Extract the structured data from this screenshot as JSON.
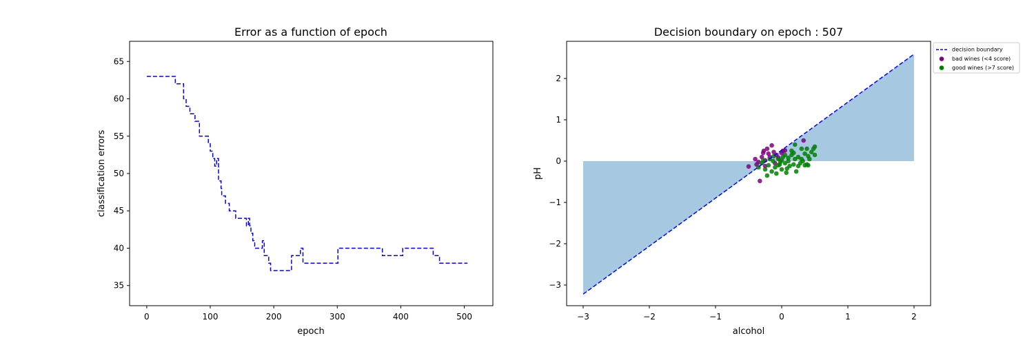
{
  "chart_data": [
    {
      "type": "line",
      "title": "Error as a function of epoch",
      "xlabel": "epoch",
      "ylabel": "classification errors",
      "xlim": [
        -27,
        545
      ],
      "ylim": [
        32.3,
        67.7
      ],
      "xticks": [
        0,
        100,
        200,
        300,
        400,
        500
      ],
      "yticks": [
        35,
        40,
        45,
        50,
        55,
        60,
        65
      ],
      "step": true,
      "series": [
        {
          "color": "#0000ff",
          "linestyle": "dashed",
          "x": [
            0,
            45,
            45,
            58,
            58,
            62,
            62,
            68,
            68,
            76,
            76,
            83,
            83,
            97,
            97,
            100,
            100,
            104,
            104,
            107,
            107,
            110,
            110,
            113,
            113,
            114,
            114,
            117,
            117,
            118,
            118,
            124,
            124,
            130,
            130,
            134,
            134,
            140,
            140,
            157,
            157,
            160,
            160,
            162,
            162,
            164,
            164,
            167,
            167,
            170,
            170,
            174,
            174,
            182,
            182,
            185,
            185,
            192,
            192,
            195,
            195,
            200,
            200,
            205,
            205,
            228,
            228,
            242,
            242,
            246,
            246,
            250,
            250,
            288,
            288,
            301,
            301,
            310,
            310,
            351,
            351,
            371,
            371,
            403,
            403,
            451,
            451,
            461,
            461,
            468,
            468,
            505
          ],
          "y": [
            63,
            63,
            62,
            62,
            60,
            60,
            59,
            59,
            58,
            58,
            57,
            57,
            55,
            55,
            54,
            54,
            53,
            53,
            52,
            52,
            51,
            51,
            52,
            52,
            49,
            49,
            49,
            49,
            48,
            48,
            47,
            47,
            46,
            46,
            45,
            45,
            45,
            45,
            44,
            44,
            43,
            43,
            44,
            44,
            43,
            43,
            42,
            42,
            41,
            41,
            40,
            40,
            40,
            40,
            41,
            41,
            39,
            39,
            38,
            38,
            37,
            37,
            37,
            37,
            37,
            37,
            39,
            39,
            40,
            40,
            38,
            38,
            38,
            38,
            38,
            38,
            40,
            40,
            40,
            40,
            40,
            40,
            39,
            39,
            40,
            40,
            39,
            39,
            38,
            38,
            38,
            38
          ]
        }
      ]
    },
    {
      "type": "scatter",
      "title": "Decision boundary on epoch : 507",
      "xlabel": "alcohol",
      "ylabel": "pH",
      "xlim": [
        -3.25,
        2.25
      ],
      "ylim": [
        -3.5,
        2.9
      ],
      "xticks": [
        -3,
        -2,
        -1,
        0,
        1,
        2
      ],
      "yticks": [
        -3,
        -2,
        -1,
        0,
        1,
        2
      ],
      "xtick_labels": [
        "−3",
        "−2",
        "−1",
        "0",
        "1",
        "2"
      ],
      "ytick_labels": [
        "−3",
        "−2",
        "−1",
        "0",
        "1",
        "2"
      ],
      "legend_position": "outside-top-right",
      "boundary": {
        "label": "decision boundary",
        "color": "#0000ff",
        "linestyle": "dashed",
        "x": [
          -3,
          2
        ],
        "y": [
          -3.22,
          2.59
        ]
      },
      "fill": {
        "color": "#a6c8e1",
        "regions": [
          {
            "x": [
              -3,
              -0.22
            ],
            "y_from": [
              -3.22,
              0
            ],
            "y_to": [
              0,
              0
            ]
          },
          {
            "x": [
              -0.22,
              2
            ],
            "y_from": [
              0,
              2.59
            ],
            "y_to": [
              0,
              0
            ]
          }
        ]
      },
      "series": [
        {
          "name": "bad wines (<4 score)",
          "color": "#800080",
          "points": [
            [
              -0.5,
              -0.13
            ],
            [
              -0.4,
              0.05
            ],
            [
              -0.38,
              -0.08
            ],
            [
              -0.33,
              -0.48
            ],
            [
              -0.3,
              0.1
            ],
            [
              -0.28,
              0.2
            ],
            [
              -0.27,
              0.25
            ],
            [
              -0.25,
              0.02
            ],
            [
              -0.22,
              0.3
            ],
            [
              -0.2,
              0.18
            ],
            [
              -0.18,
              0.1
            ],
            [
              -0.15,
              0.38
            ],
            [
              -0.12,
              0.22
            ],
            [
              -0.1,
              -0.05
            ],
            [
              -0.08,
              0.15
            ],
            [
              -0.05,
              0.08
            ],
            [
              0.0,
              0.2
            ],
            [
              0.02,
              0.25
            ],
            [
              0.05,
              0.26
            ],
            [
              0.33,
              0.5
            ],
            [
              -0.35,
              -0.02
            ],
            [
              -0.25,
              -0.12
            ]
          ]
        },
        {
          "name": "good wines (>7 score)",
          "color": "#008000",
          "points": [
            [
              -0.35,
              -0.15
            ],
            [
              -0.3,
              -0.05
            ],
            [
              -0.28,
              0.02
            ],
            [
              -0.25,
              -0.2
            ],
            [
              -0.22,
              -0.35
            ],
            [
              -0.2,
              -0.1
            ],
            [
              -0.18,
              0.05
            ],
            [
              -0.15,
              -0.25
            ],
            [
              -0.13,
              0.0
            ],
            [
              -0.1,
              -0.15
            ],
            [
              -0.08,
              -0.3
            ],
            [
              -0.05,
              0.05
            ],
            [
              -0.03,
              -0.08
            ],
            [
              0.0,
              -0.2
            ],
            [
              0.02,
              0.1
            ],
            [
              0.05,
              -0.05
            ],
            [
              0.07,
              -0.28
            ],
            [
              0.1,
              0.0
            ],
            [
              0.12,
              -0.12
            ],
            [
              0.15,
              0.15
            ],
            [
              0.18,
              -0.08
            ],
            [
              0.2,
              0.05
            ],
            [
              0.22,
              -0.25
            ],
            [
              0.25,
              0.1
            ],
            [
              0.28,
              -0.05
            ],
            [
              0.3,
              0.3
            ],
            [
              0.32,
              0.0
            ],
            [
              0.35,
              0.18
            ],
            [
              0.38,
              -0.08
            ],
            [
              0.4,
              0.12
            ],
            [
              0.42,
              0.05
            ],
            [
              0.45,
              0.22
            ],
            [
              0.48,
              0.3
            ],
            [
              0.5,
              0.15
            ],
            [
              0.5,
              0.35
            ],
            [
              0.38,
              0.3
            ],
            [
              0.2,
              0.4
            ],
            [
              0.15,
              0.25
            ],
            [
              0.0,
              0.02
            ],
            [
              -0.05,
              -0.1
            ],
            [
              0.1,
              0.08
            ],
            [
              0.25,
              -0.12
            ],
            [
              0.05,
              0.15
            ],
            [
              -0.12,
              0.12
            ],
            [
              0.3,
              0.05
            ],
            [
              0.4,
              -0.1
            ],
            [
              0.18,
              0.2
            ],
            [
              -0.02,
              -0.02
            ],
            [
              0.08,
              -0.18
            ],
            [
              0.35,
              -0.1
            ]
          ]
        }
      ]
    }
  ]
}
